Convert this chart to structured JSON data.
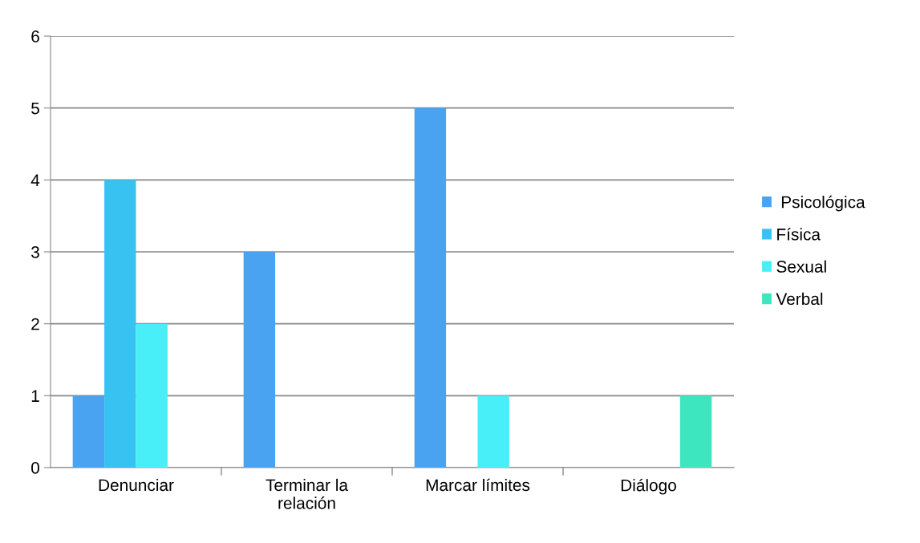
{
  "chart_data": {
    "type": "bar",
    "categories": [
      "Denunciar",
      "Terminar la\nrelación",
      "Marcar límites",
      "Diálogo"
    ],
    "series": [
      {
        "name": " Psicológica",
        "color": "#4aa3f0",
        "values": [
          1,
          3,
          5,
          0
        ]
      },
      {
        "name": "Física",
        "color": "#38c2f2",
        "values": [
          4,
          0,
          0,
          0
        ]
      },
      {
        "name": "Sexual",
        "color": "#48eef8",
        "values": [
          2,
          0,
          1,
          0
        ]
      },
      {
        "name": "Verbal",
        "color": "#3ee6c0",
        "values": [
          0,
          0,
          0,
          1
        ]
      }
    ],
    "ylim": [
      0,
      6
    ],
    "yticks": [
      0,
      1,
      2,
      3,
      4,
      5,
      6
    ],
    "grid": "y",
    "legend": "right"
  }
}
